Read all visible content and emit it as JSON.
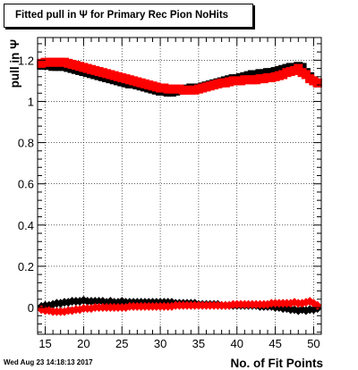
{
  "chart_data": {
    "type": "scatter",
    "title": "Fitted pull in  Ψ  for Primary Rec Pion NoHits",
    "xlabel": "No. of Fit Points",
    "ylabel": "pull in Ψ",
    "xlim": [
      14,
      51
    ],
    "ylim": [
      -0.13,
      1.31
    ],
    "x_ticks": [
      15,
      20,
      25,
      30,
      35,
      40,
      45,
      50
    ],
    "y_ticks": [
      0,
      0.2,
      0.4,
      0.6,
      0.8,
      1,
      1.2
    ],
    "x_tick_labels": [
      "15",
      "20",
      "25",
      "30",
      "35",
      "40",
      "45",
      "50"
    ],
    "y_tick_labels": [
      "0",
      "0.2",
      "0.4",
      "0.6",
      "0.8",
      "1",
      "1.2"
    ],
    "grid": true,
    "series": [
      {
        "kind": "width-black",
        "color": "#000000",
        "marker": "square",
        "x": [
          14.5,
          15,
          15.5,
          16,
          16.5,
          17,
          17.5,
          18,
          18.5,
          19,
          19.5,
          20,
          20.5,
          21,
          21.5,
          22,
          22.5,
          23,
          23.5,
          24,
          24.5,
          25,
          25.5,
          26,
          26.5,
          27,
          27.5,
          28,
          28.5,
          29,
          29.5,
          30,
          30.5,
          31,
          31.5,
          32,
          32.5,
          33,
          33.5,
          34,
          34.5,
          35,
          35.5,
          36,
          36.5,
          37,
          37.5,
          38,
          38.5,
          39,
          39.5,
          40,
          40.5,
          41,
          41.5,
          42,
          42.5,
          43,
          43.5,
          44,
          44.5,
          45,
          45.5,
          46,
          46.5,
          47,
          47.5,
          48,
          48.5,
          49,
          49.5,
          50,
          50.5
        ],
        "y": [
          1.175,
          1.18,
          1.175,
          1.17,
          1.17,
          1.17,
          1.17,
          1.165,
          1.16,
          1.155,
          1.15,
          1.145,
          1.14,
          1.135,
          1.13,
          1.125,
          1.12,
          1.115,
          1.11,
          1.105,
          1.1,
          1.095,
          1.09,
          1.085,
          1.085,
          1.08,
          1.075,
          1.07,
          1.065,
          1.06,
          1.055,
          1.05,
          1.05,
          1.045,
          1.045,
          1.05,
          1.055,
          1.055,
          1.06,
          1.065,
          1.065,
          1.065,
          1.07,
          1.075,
          1.08,
          1.085,
          1.09,
          1.095,
          1.1,
          1.105,
          1.11,
          1.11,
          1.115,
          1.12,
          1.125,
          1.13,
          1.13,
          1.135,
          1.135,
          1.14,
          1.14,
          1.145,
          1.15,
          1.155,
          1.16,
          1.165,
          1.165,
          1.17,
          1.165,
          1.14,
          1.12,
          1.1,
          1.09
        ]
      },
      {
        "kind": "width-red",
        "color": "#ff0000",
        "marker": "square",
        "x": [
          14.5,
          15,
          15.5,
          16,
          16.5,
          17,
          17.5,
          18,
          18.5,
          19,
          19.5,
          20,
          20.5,
          21,
          21.5,
          22,
          22.5,
          23,
          23.5,
          24,
          24.5,
          25,
          25.5,
          26,
          26.5,
          27,
          27.5,
          28,
          28.5,
          29,
          29.5,
          30,
          30.5,
          31,
          31.5,
          32,
          32.5,
          33,
          33.5,
          34,
          34.5,
          35,
          35.5,
          36,
          36.5,
          37,
          37.5,
          38,
          38.5,
          39,
          39.5,
          40,
          40.5,
          41,
          41.5,
          42,
          42.5,
          43,
          43.5,
          44,
          44.5,
          45,
          45.5,
          46,
          46.5,
          47,
          47.5,
          48,
          48.5,
          49,
          49.5,
          50,
          50.5
        ],
        "y": [
          1.185,
          1.19,
          1.19,
          1.19,
          1.19,
          1.19,
          1.19,
          1.185,
          1.18,
          1.175,
          1.17,
          1.165,
          1.16,
          1.155,
          1.15,
          1.145,
          1.14,
          1.135,
          1.13,
          1.125,
          1.12,
          1.115,
          1.11,
          1.105,
          1.1,
          1.095,
          1.09,
          1.085,
          1.08,
          1.075,
          1.07,
          1.065,
          1.065,
          1.06,
          1.06,
          1.06,
          1.06,
          1.055,
          1.055,
          1.055,
          1.055,
          1.06,
          1.065,
          1.07,
          1.075,
          1.08,
          1.085,
          1.09,
          1.09,
          1.095,
          1.1,
          1.1,
          1.1,
          1.105,
          1.105,
          1.105,
          1.105,
          1.11,
          1.11,
          1.115,
          1.115,
          1.12,
          1.125,
          1.13,
          1.14,
          1.145,
          1.15,
          1.16,
          1.14,
          1.13,
          1.11,
          1.1,
          1.09
        ]
      },
      {
        "kind": "mean-black",
        "color": "#000000",
        "marker": "diamond",
        "x": [
          14.5,
          15,
          15.5,
          16,
          16.5,
          17,
          17.5,
          18,
          18.5,
          19,
          19.5,
          20,
          20.5,
          21,
          21.5,
          22,
          22.5,
          23,
          23.5,
          24,
          24.5,
          25,
          25.5,
          26,
          26.5,
          27,
          27.5,
          28,
          28.5,
          29,
          29.5,
          30,
          30.5,
          31,
          31.5,
          32,
          32.5,
          33,
          33.5,
          34,
          34.5,
          35,
          35.5,
          36,
          36.5,
          37,
          37.5,
          38,
          38.5,
          39,
          39.5,
          40,
          40.5,
          41,
          41.5,
          42,
          42.5,
          43,
          43.5,
          44,
          44.5,
          45,
          45.5,
          46,
          46.5,
          47,
          47.5,
          48,
          48.5,
          49,
          49.5,
          50,
          50.5
        ],
        "y": [
          0.005,
          0.01,
          0.01,
          0.015,
          0.02,
          0.02,
          0.025,
          0.025,
          0.03,
          0.03,
          0.03,
          0.035,
          0.03,
          0.03,
          0.03,
          0.03,
          0.03,
          0.025,
          0.03,
          0.025,
          0.025,
          0.03,
          0.025,
          0.025,
          0.025,
          0.025,
          0.025,
          0.025,
          0.025,
          0.025,
          0.025,
          0.025,
          0.025,
          0.025,
          0.025,
          0.02,
          0.02,
          0.02,
          0.02,
          0.02,
          0.02,
          0.015,
          0.015,
          0.015,
          0.015,
          0.015,
          0.015,
          0.01,
          0.01,
          0.01,
          0.01,
          0.01,
          0.01,
          0.01,
          0.01,
          0.01,
          0.01,
          0.005,
          0.005,
          0.005,
          0.005,
          0.0,
          0.0,
          -0.005,
          -0.005,
          -0.01,
          -0.01,
          -0.015,
          -0.01,
          -0.015,
          -0.01,
          -0.01,
          -0.005
        ]
      },
      {
        "kind": "mean-red",
        "color": "#ff0000",
        "marker": "diamond",
        "x": [
          14.5,
          15,
          15.5,
          16,
          16.5,
          17,
          17.5,
          18,
          18.5,
          19,
          19.5,
          20,
          20.5,
          21,
          21.5,
          22,
          22.5,
          23,
          23.5,
          24,
          24.5,
          25,
          25.5,
          26,
          26.5,
          27,
          27.5,
          28,
          28.5,
          29,
          29.5,
          30,
          30.5,
          31,
          31.5,
          32,
          32.5,
          33,
          33.5,
          34,
          34.5,
          35,
          35.5,
          36,
          36.5,
          37,
          37.5,
          38,
          38.5,
          39,
          39.5,
          40,
          40.5,
          41,
          41.5,
          42,
          42.5,
          43,
          43.5,
          44,
          44.5,
          45,
          45.5,
          46,
          46.5,
          47,
          47.5,
          48,
          48.5,
          49,
          49.5,
          50,
          50.5
        ],
        "y": [
          -0.01,
          -0.015,
          -0.015,
          -0.02,
          -0.02,
          -0.02,
          -0.02,
          -0.015,
          -0.015,
          -0.01,
          -0.01,
          -0.005,
          -0.005,
          -0.005,
          0.0,
          0.0,
          0.0,
          0.0,
          0.0,
          0.0,
          0.0,
          0.0,
          0.0,
          0.005,
          0.005,
          0.005,
          0.005,
          0.005,
          0.005,
          0.005,
          0.005,
          0.005,
          0.005,
          0.005,
          0.005,
          0.01,
          0.01,
          0.01,
          0.01,
          0.01,
          0.01,
          0.01,
          0.01,
          0.01,
          0.01,
          0.01,
          0.01,
          0.01,
          0.01,
          0.01,
          0.015,
          0.015,
          0.015,
          0.015,
          0.015,
          0.015,
          0.015,
          0.015,
          0.015,
          0.015,
          0.02,
          0.02,
          0.02,
          0.02,
          0.02,
          0.02,
          0.025,
          0.02,
          0.02,
          0.025,
          0.03,
          0.02,
          0.01
        ]
      }
    ]
  },
  "footer": {
    "timestamp": "Wed Aug 23 14:18:13 2017"
  }
}
